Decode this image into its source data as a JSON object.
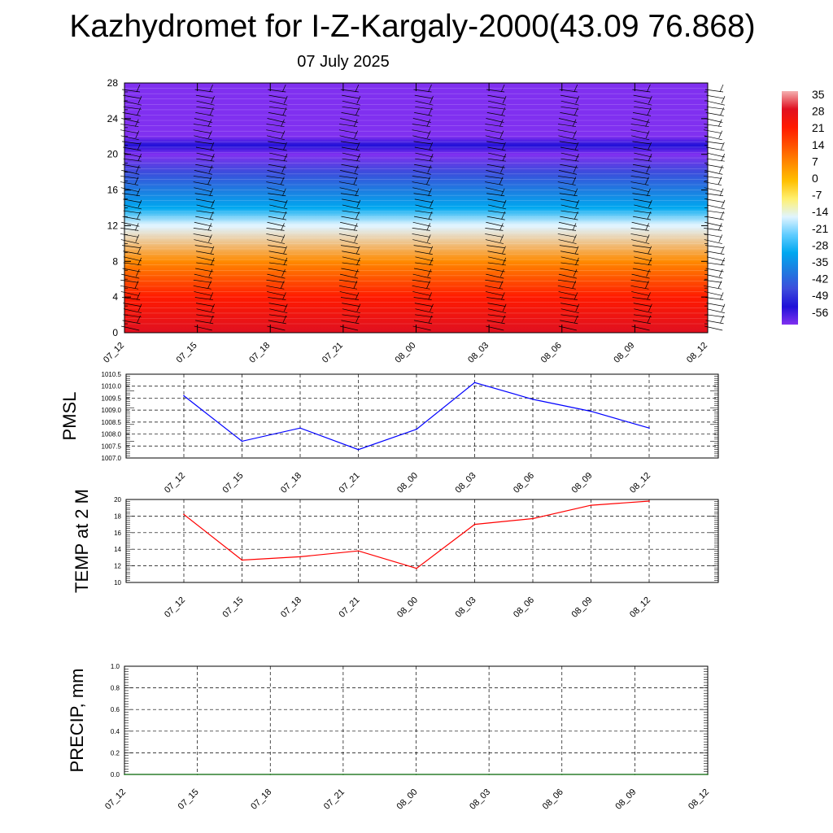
{
  "title": "Kazhydromet for I-Z-Kargaly-2000(43.09 76.868)",
  "date": "07 July 2025",
  "colors": {
    "pmsl_line": "#0000ff",
    "temp_line": "#ff0000",
    "precip_line": "#006400",
    "grid": "#000000"
  },
  "chart_data": [
    {
      "type": "heatmap",
      "name": "cross-section",
      "x": [
        "07_12",
        "07_15",
        "07_18",
        "07_21",
        "08_00",
        "08_03",
        "08_06",
        "08_09",
        "08_12"
      ],
      "ylim": [
        0,
        28
      ],
      "yticks": [
        0,
        4,
        8,
        12,
        16,
        20,
        24,
        28
      ],
      "colorbar": {
        "labels": [
          "35",
          "28",
          "21",
          "14",
          "7",
          "0",
          "-7",
          "-14",
          "-21",
          "-28",
          "-35",
          "-42",
          "-49",
          "-56"
        ],
        "colors": [
          "#f4b0b0",
          "#e01020",
          "#ff1a00",
          "#ff5000",
          "#ff8a00",
          "#ffc000",
          "#fff070",
          "#e0f4ff",
          "#60ccff",
          "#00a8f0",
          "#1e7ce0",
          "#3c4cdc",
          "#2010d8",
          "#8030f0"
        ]
      },
      "temperature_profile": [
        {
          "height": 0,
          "value": 30
        },
        {
          "height": 4,
          "value": 22
        },
        {
          "height": 8,
          "value": 7
        },
        {
          "height": 11.9,
          "value": -12
        },
        {
          "height": 12.1,
          "value": -14
        },
        {
          "height": 14,
          "value": -25
        },
        {
          "height": 16,
          "value": -32
        },
        {
          "height": 18,
          "value": -42
        },
        {
          "height": 20,
          "value": -56
        },
        {
          "height": 21,
          "value": -50
        },
        {
          "height": 22,
          "value": -60
        },
        {
          "height": 28,
          "value": -60
        }
      ],
      "wind_barbs": "present"
    },
    {
      "type": "line",
      "name": "pmsl",
      "ylabel": "PMSL",
      "x": [
        "07_12",
        "07_15",
        "07_18",
        "07_21",
        "08_00",
        "08_03",
        "08_06",
        "08_09",
        "08_12"
      ],
      "values": [
        1009.6,
        1007.7,
        1008.25,
        1007.35,
        1008.2,
        1010.15,
        1009.45,
        1008.95,
        1008.25
      ],
      "ylim": [
        1007.0,
        1010.5
      ],
      "yticks": [
        "1007.0",
        "1007.5",
        "1008.0",
        "1008.5",
        "1009.0",
        "1009.5",
        "1010.0",
        "1010.5"
      ],
      "grid": true
    },
    {
      "type": "line",
      "name": "temp2m",
      "ylabel": "TEMP at 2 M",
      "x": [
        "07_12",
        "07_15",
        "07_18",
        "07_21",
        "08_00",
        "08_03",
        "08_06",
        "08_09",
        "08_12"
      ],
      "values": [
        18.2,
        12.7,
        13.1,
        13.8,
        11.7,
        17.0,
        17.7,
        19.3,
        19.8
      ],
      "ylim": [
        10,
        20
      ],
      "yticks": [
        "10",
        "12",
        "14",
        "16",
        "18",
        "20"
      ],
      "grid": true
    },
    {
      "type": "line",
      "name": "precip",
      "ylabel": "PRECIP, mm",
      "x": [
        "07_12",
        "07_15",
        "07_18",
        "07_21",
        "08_00",
        "08_03",
        "08_06",
        "08_09",
        "08_12"
      ],
      "values": [
        0,
        0,
        0,
        0,
        0,
        0,
        0,
        0,
        0
      ],
      "ylim": [
        0.0,
        1.0
      ],
      "yticks": [
        "0.0",
        "0.2",
        "0.4",
        "0.6",
        "0.8",
        "1.0"
      ],
      "grid": true
    }
  ]
}
